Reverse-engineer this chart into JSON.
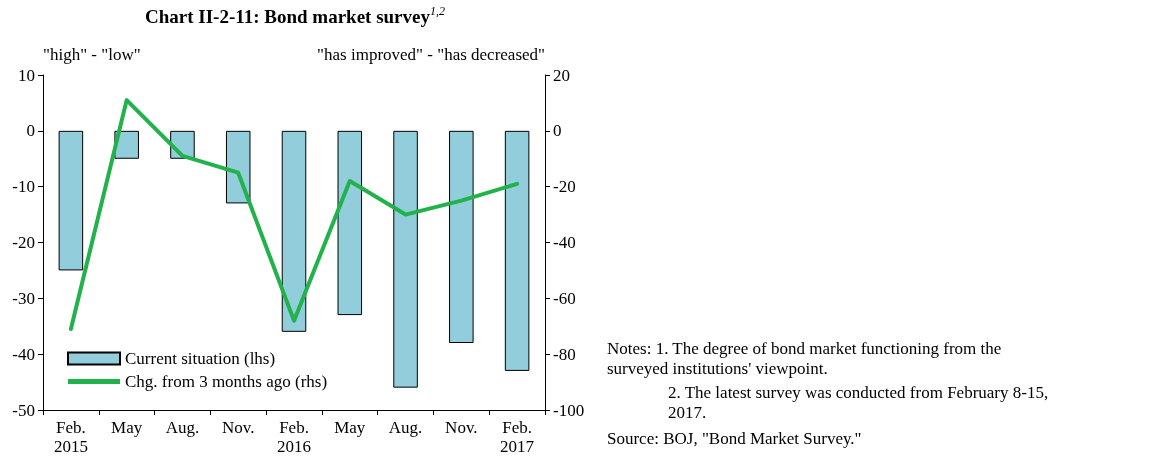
{
  "chart_data": {
    "type": "bar",
    "title": "Chart II-2-11: Bond market survey$^{1,2}$",
    "ylabel": "\"high\" - \"low\"",
    "y2label": "\"has improved\" - \"has decreased\"",
    "categories": [
      "Feb.\n2015",
      "May",
      "Aug.",
      "Nov.",
      "Feb.\n2016",
      "May",
      "Aug.",
      "Nov.",
      "Feb.\n2017"
    ],
    "series": [
      {
        "name": "Current situation (lhs)",
        "color": "#92cddc",
        "values": [
          -25,
          -5,
          -5,
          -13,
          -36,
          -33,
          -46,
          -38,
          -43
        ]
      },
      {
        "name": "Chg. from 3 months ago (rhs)",
        "type": "line",
        "axis": "y2",
        "color": "#21b24b",
        "values": [
          -71,
          11,
          -9,
          -15,
          -68,
          -18,
          -30,
          -25,
          -19
        ]
      }
    ],
    "ylim": [
      -50,
      10
    ],
    "yticks": [
      -50,
      -40,
      -30,
      -20,
      -10,
      0,
      10
    ],
    "y2lim": [
      -100,
      20
    ],
    "y2ticks": [
      -100,
      -80,
      -60,
      -40,
      -20,
      0,
      20
    ],
    "grid": false,
    "legend": "bottom left",
    "marker": "none",
    "line_style": "solid",
    "annotations": [
      "Notes: 1. The degree of bond market functioning from the surveyed institutions' viewpoint.",
      "2. The latest survey was conducted from February 8-15, 2017.",
      "Source: BOJ, \"Bond Market Survey.\""
    ]
  }
}
